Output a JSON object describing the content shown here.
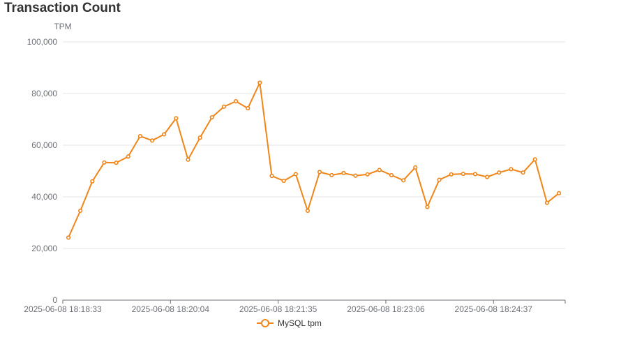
{
  "chart_data": {
    "type": "line",
    "title": "Transaction Count",
    "ylabel": "TPM",
    "xlabel": "",
    "ylim": [
      0,
      100000
    ],
    "y_ticks": [
      0,
      20000,
      40000,
      60000,
      80000,
      100000
    ],
    "y_tick_labels": [
      "0",
      "20,000",
      "40,000",
      "60,000",
      "80,000",
      "100,000"
    ],
    "x_tick_labels": [
      "2025-06-08 18:18:33",
      "2025-06-08 18:20:04",
      "2025-06-08 18:21:35",
      "2025-06-08 18:23:06",
      "2025-06-08 18:24:37"
    ],
    "grid": true,
    "legend_position": "bottom-center",
    "colors": {
      "series": "#f08519",
      "grid": "#e6e6e6",
      "axis": "#6e7079",
      "label": "#6e7079"
    },
    "series": [
      {
        "name": "MySQL tpm",
        "values": [
          24200,
          34600,
          46000,
          53300,
          53200,
          55600,
          63500,
          61800,
          64200,
          70400,
          54400,
          62900,
          70800,
          74900,
          77000,
          74300,
          84200,
          48100,
          46200,
          48800,
          34600,
          49600,
          48400,
          49200,
          48200,
          48700,
          50400,
          48400,
          46400,
          51400,
          36100,
          46600,
          48700,
          48900,
          48800,
          47700,
          49400,
          50700,
          49400,
          54500,
          37700,
          41400
        ]
      }
    ]
  }
}
